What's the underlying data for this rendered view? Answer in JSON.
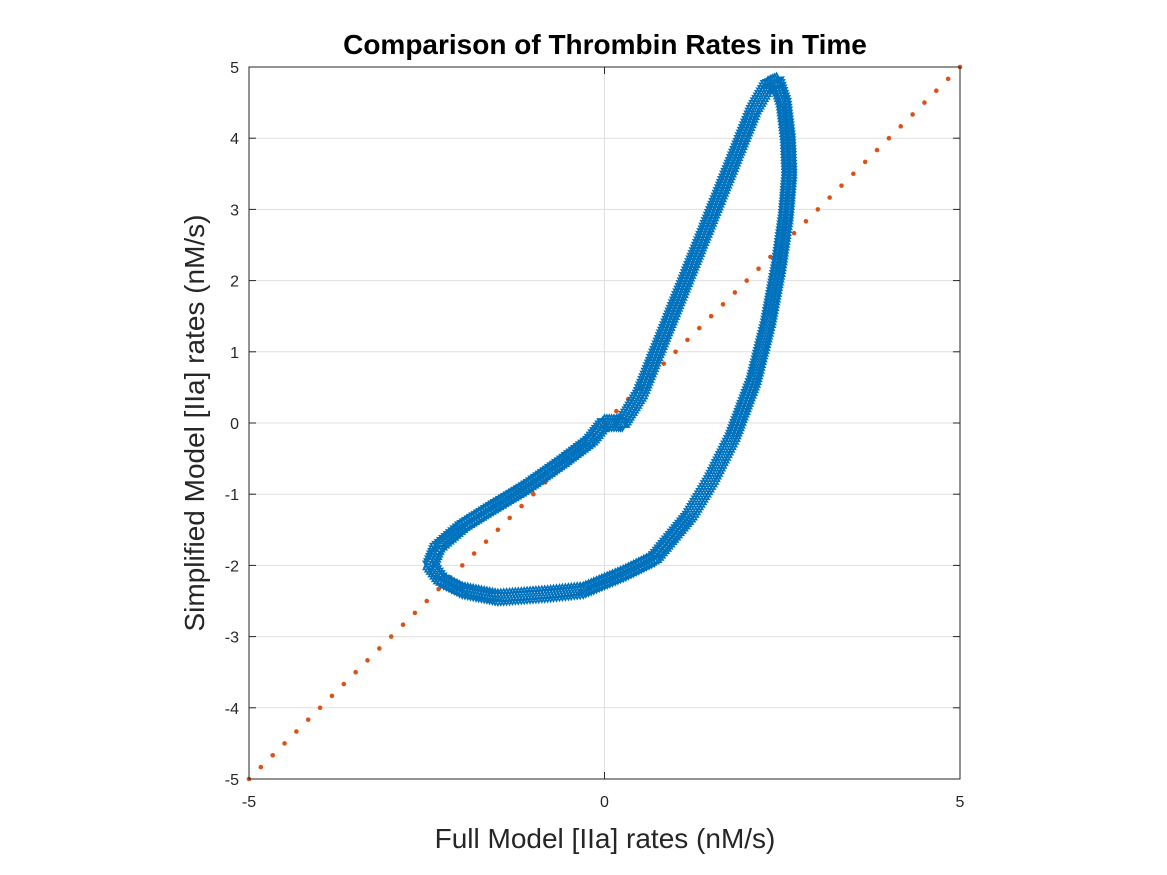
{
  "chart_data": {
    "type": "scatter",
    "title": "Comparison of Thrombin Rates in Time",
    "xlabel": "Full Model [IIa] rates (nM/s)",
    "ylabel": "Simplified Model [IIa] rates (nM/s)",
    "xlim": [
      -5,
      5
    ],
    "ylim": [
      -5,
      5
    ],
    "x_ticks": [
      -5,
      0,
      5
    ],
    "x_tick_labels": [
      "-5",
      "0",
      "5"
    ],
    "y_ticks": [
      -5,
      -4,
      -3,
      -2,
      -1,
      0,
      1,
      2,
      3,
      4,
      5
    ],
    "y_tick_labels": [
      "-5",
      "-4",
      "-3",
      "-2",
      "-1",
      "0",
      "1",
      "2",
      "3",
      "4",
      "5"
    ],
    "grid": true,
    "colors": {
      "loop": "#0072BD",
      "identity": "#D95319",
      "axes": "#262626",
      "grid": "#DFDFDF"
    },
    "series": [
      {
        "marker": "hexagram",
        "color": "#0072BD",
        "path": [
          [
            0.0,
            0.0
          ],
          [
            0.1,
            0.0
          ],
          [
            0.2,
            0.0
          ],
          [
            0.25,
            0.0
          ],
          [
            0.5,
            0.4
          ],
          [
            0.7,
            0.9
          ],
          [
            0.9,
            1.4
          ],
          [
            1.1,
            1.9
          ],
          [
            1.3,
            2.4
          ],
          [
            1.5,
            2.9
          ],
          [
            1.7,
            3.4
          ],
          [
            1.9,
            3.9
          ],
          [
            2.1,
            4.4
          ],
          [
            2.3,
            4.75
          ],
          [
            2.42,
            4.8
          ],
          [
            2.52,
            4.5
          ],
          [
            2.58,
            4.0
          ],
          [
            2.6,
            3.5
          ],
          [
            2.55,
            2.9
          ],
          [
            2.45,
            2.2
          ],
          [
            2.3,
            1.4
          ],
          [
            2.1,
            0.6
          ],
          [
            1.8,
            -0.2
          ],
          [
            1.5,
            -0.8
          ],
          [
            1.2,
            -1.3
          ],
          [
            0.7,
            -1.9
          ],
          [
            0.3,
            -2.1
          ],
          [
            -0.3,
            -2.35
          ],
          [
            -0.8,
            -2.4
          ],
          [
            -1.5,
            -2.45
          ],
          [
            -2.0,
            -2.35
          ],
          [
            -2.3,
            -2.2
          ],
          [
            -2.45,
            -2.0
          ],
          [
            -2.35,
            -1.75
          ],
          [
            -2.0,
            -1.45
          ],
          [
            -1.6,
            -1.2
          ],
          [
            -1.1,
            -0.9
          ],
          [
            -0.6,
            -0.55
          ],
          [
            -0.2,
            -0.25
          ],
          [
            0.0,
            0.0
          ]
        ]
      },
      {
        "marker": "dot",
        "color": "#D95319",
        "x_range": [
          -5,
          5
        ],
        "slope": 1,
        "intercept": 0
      }
    ]
  }
}
